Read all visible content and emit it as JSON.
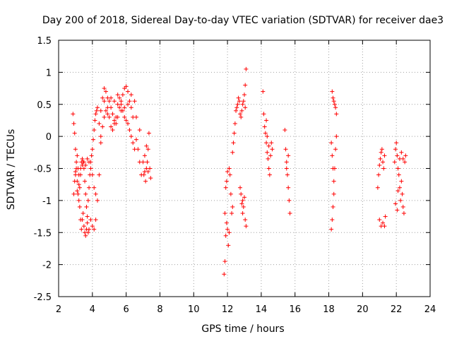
{
  "chart_data": {
    "type": "scatter",
    "title": "Day 200 of 2018, Sidereal Day-to-day VTEC variation (SDTVAR) for receiver dae3",
    "xlabel": "GPS time / hours",
    "ylabel": "SDTVAR / TECUs",
    "xlim": [
      2,
      24
    ],
    "ylim": [
      -2.5,
      1.5
    ],
    "xticks": [
      "2",
      "4",
      "6",
      "8",
      "10",
      "12",
      "14",
      "16",
      "18",
      "20",
      "22",
      "24"
    ],
    "yticks": [
      "1.5",
      "1",
      "0.5",
      "0",
      "-0.5",
      "-1",
      "-1.5",
      "-2",
      "-2.5"
    ],
    "grid": true,
    "marker": "+",
    "color": "#ff0000",
    "series": [
      {
        "name": "SDTVAR",
        "points": [
          [
            2.85,
            0.35
          ],
          [
            2.9,
            0.2
          ],
          [
            2.95,
            0.05
          ],
          [
            3.0,
            -0.2
          ],
          [
            3.05,
            -0.5
          ],
          [
            3.1,
            -0.7
          ],
          [
            3.15,
            -0.9
          ],
          [
            3.2,
            -1.0
          ],
          [
            3.25,
            -0.8
          ],
          [
            3.3,
            -0.6
          ],
          [
            3.35,
            -0.4
          ],
          [
            3.4,
            -0.35
          ],
          [
            3.45,
            -0.4
          ],
          [
            3.5,
            -0.5
          ],
          [
            3.55,
            -0.7
          ],
          [
            3.6,
            -0.9
          ],
          [
            3.65,
            -1.1
          ],
          [
            3.7,
            -1.25
          ],
          [
            3.75,
            -1.0
          ],
          [
            3.8,
            -0.8
          ],
          [
            3.85,
            -0.6
          ],
          [
            3.9,
            -0.4
          ],
          [
            3.95,
            -0.3
          ],
          [
            4.0,
            -0.2
          ],
          [
            4.05,
            -0.05
          ],
          [
            4.1,
            0.1
          ],
          [
            4.15,
            0.25
          ],
          [
            4.2,
            0.35
          ],
          [
            4.25,
            0.4
          ],
          [
            4.3,
            0.45
          ],
          [
            2.9,
            -0.9
          ],
          [
            2.95,
            -0.7
          ],
          [
            3.0,
            -0.55
          ],
          [
            3.05,
            -0.4
          ],
          [
            3.1,
            -0.3
          ],
          [
            3.15,
            -0.5
          ],
          [
            3.2,
            -0.75
          ],
          [
            3.25,
            -1.1
          ],
          [
            3.3,
            -1.3
          ],
          [
            3.35,
            -1.45
          ],
          [
            3.4,
            -1.3
          ],
          [
            3.45,
            -1.2
          ],
          [
            3.5,
            -1.4
          ],
          [
            3.55,
            -1.5
          ],
          [
            3.6,
            -1.55
          ],
          [
            3.65,
            -1.45
          ],
          [
            3.7,
            -1.35
          ],
          [
            3.75,
            -1.5
          ],
          [
            3.8,
            -1.45
          ],
          [
            3.9,
            -1.3
          ],
          [
            4.0,
            -1.4
          ],
          [
            4.1,
            -1.45
          ],
          [
            4.2,
            -1.3
          ],
          [
            3.0,
            -0.6
          ],
          [
            3.1,
            -0.85
          ],
          [
            3.2,
            -0.6
          ],
          [
            3.3,
            -0.5
          ],
          [
            3.4,
            -0.45
          ],
          [
            3.5,
            -0.4
          ],
          [
            3.6,
            -0.45
          ],
          [
            3.7,
            -0.35
          ],
          [
            3.8,
            -0.4
          ],
          [
            3.9,
            -0.5
          ],
          [
            4.0,
            -0.6
          ],
          [
            4.1,
            -0.8
          ],
          [
            4.2,
            -0.9
          ],
          [
            4.3,
            -1.0
          ],
          [
            4.4,
            -0.6
          ],
          [
            4.5,
            -0.1
          ],
          [
            4.4,
            0.2
          ],
          [
            4.5,
            0.4
          ],
          [
            4.6,
            0.6
          ],
          [
            4.7,
            0.75
          ],
          [
            4.8,
            0.7
          ],
          [
            4.9,
            0.6
          ],
          [
            5.0,
            0.55
          ],
          [
            5.1,
            0.45
          ],
          [
            5.2,
            0.35
          ],
          [
            5.3,
            0.25
          ],
          [
            5.4,
            0.2
          ],
          [
            5.5,
            0.3
          ],
          [
            5.6,
            0.45
          ],
          [
            5.7,
            0.55
          ],
          [
            5.8,
            0.65
          ],
          [
            5.9,
            0.75
          ],
          [
            6.0,
            0.78
          ],
          [
            6.1,
            0.7
          ],
          [
            6.2,
            0.55
          ],
          [
            6.3,
            0.45
          ],
          [
            6.4,
            0.3
          ],
          [
            4.5,
            0.0
          ],
          [
            4.6,
            0.15
          ],
          [
            4.7,
            0.3
          ],
          [
            4.8,
            0.4
          ],
          [
            4.9,
            0.35
          ],
          [
            5.0,
            0.3
          ],
          [
            5.1,
            0.15
          ],
          [
            5.2,
            0.1
          ],
          [
            5.3,
            0.2
          ],
          [
            5.4,
            0.3
          ],
          [
            5.5,
            0.5
          ],
          [
            5.6,
            0.6
          ],
          [
            5.7,
            0.5
          ],
          [
            5.8,
            0.4
          ],
          [
            5.9,
            0.3
          ],
          [
            6.0,
            0.25
          ],
          [
            6.1,
            0.2
          ],
          [
            6.2,
            0.1
          ],
          [
            6.3,
            0.0
          ],
          [
            6.4,
            -0.1
          ],
          [
            6.5,
            -0.2
          ],
          [
            6.6,
            -0.05
          ],
          [
            6.7,
            -0.2
          ],
          [
            6.8,
            -0.4
          ],
          [
            6.9,
            -0.6
          ],
          [
            4.7,
            0.55
          ],
          [
            4.9,
            0.45
          ],
          [
            5.1,
            0.6
          ],
          [
            5.3,
            0.55
          ],
          [
            5.5,
            0.65
          ],
          [
            5.7,
            0.4
          ],
          [
            5.9,
            0.45
          ],
          [
            6.1,
            0.5
          ],
          [
            6.3,
            0.65
          ],
          [
            6.5,
            0.55
          ],
          [
            6.6,
            0.3
          ],
          [
            6.8,
            0.1
          ],
          [
            7.0,
            -0.4
          ],
          [
            7.05,
            -0.6
          ],
          [
            7.1,
            -0.55
          ],
          [
            7.15,
            -0.7
          ],
          [
            7.2,
            -0.5
          ],
          [
            7.25,
            -0.4
          ],
          [
            7.3,
            -0.2
          ],
          [
            7.35,
            0.05
          ],
          [
            7.4,
            -0.5
          ],
          [
            7.45,
            -0.65
          ],
          [
            7.1,
            -0.3
          ],
          [
            7.2,
            -0.15
          ],
          [
            7.3,
            -0.55
          ],
          [
            11.8,
            -2.15
          ],
          [
            11.85,
            -1.95
          ],
          [
            11.9,
            -1.55
          ],
          [
            11.95,
            -1.35
          ],
          [
            12.0,
            -1.45
          ],
          [
            12.05,
            -1.7
          ],
          [
            12.1,
            -1.5
          ],
          [
            11.85,
            -1.2
          ],
          [
            11.9,
            -0.8
          ],
          [
            11.95,
            -0.7
          ],
          [
            12.0,
            -0.55
          ],
          [
            12.1,
            -0.5
          ],
          [
            12.15,
            -0.6
          ],
          [
            12.2,
            -0.9
          ],
          [
            12.25,
            -1.2
          ],
          [
            12.3,
            -1.1
          ],
          [
            12.3,
            -0.25
          ],
          [
            12.35,
            -0.1
          ],
          [
            12.4,
            0.05
          ],
          [
            12.45,
            0.2
          ],
          [
            12.5,
            0.4
          ],
          [
            12.55,
            0.45
          ],
          [
            12.6,
            0.5
          ],
          [
            12.65,
            0.6
          ],
          [
            12.7,
            0.55
          ],
          [
            12.75,
            0.35
          ],
          [
            12.8,
            0.3
          ],
          [
            12.85,
            0.4
          ],
          [
            12.9,
            0.5
          ],
          [
            12.95,
            0.55
          ],
          [
            13.0,
            0.65
          ],
          [
            13.05,
            0.8
          ],
          [
            13.1,
            1.05
          ],
          [
            13.05,
            0.45
          ],
          [
            12.75,
            -0.8
          ],
          [
            12.8,
            -0.9
          ],
          [
            12.85,
            -1.05
          ],
          [
            12.9,
            -1.2
          ],
          [
            12.95,
            -1.1
          ],
          [
            13.0,
            -0.95
          ],
          [
            13.05,
            -1.3
          ],
          [
            13.1,
            -1.4
          ],
          [
            12.9,
            -1.0
          ],
          [
            14.1,
            0.7
          ],
          [
            14.15,
            0.35
          ],
          [
            14.2,
            0.15
          ],
          [
            14.25,
            0.05
          ],
          [
            14.3,
            -0.1
          ],
          [
            14.35,
            -0.25
          ],
          [
            14.4,
            -0.35
          ],
          [
            14.45,
            -0.5
          ],
          [
            14.5,
            -0.6
          ],
          [
            14.55,
            -0.3
          ],
          [
            14.6,
            -0.1
          ],
          [
            14.65,
            -0.2
          ],
          [
            14.35,
            0.0
          ],
          [
            14.45,
            -0.15
          ],
          [
            14.3,
            0.25
          ],
          [
            15.4,
            0.1
          ],
          [
            15.45,
            -0.2
          ],
          [
            15.5,
            -0.4
          ],
          [
            15.55,
            -0.6
          ],
          [
            15.6,
            -0.8
          ],
          [
            15.65,
            -1.0
          ],
          [
            15.7,
            -1.2
          ],
          [
            15.5,
            -0.5
          ],
          [
            15.6,
            -0.3
          ],
          [
            18.2,
            0.7
          ],
          [
            18.25,
            0.6
          ],
          [
            18.3,
            0.55
          ],
          [
            18.35,
            0.5
          ],
          [
            18.4,
            0.45
          ],
          [
            18.45,
            0.35
          ],
          [
            18.15,
            -0.1
          ],
          [
            18.2,
            -0.3
          ],
          [
            18.25,
            -0.5
          ],
          [
            18.3,
            -0.7
          ],
          [
            18.35,
            -0.5
          ],
          [
            18.4,
            -0.2
          ],
          [
            18.45,
            0.0
          ],
          [
            18.2,
            -1.3
          ],
          [
            18.15,
            -1.45
          ],
          [
            18.25,
            -1.1
          ],
          [
            18.3,
            -0.9
          ],
          [
            20.9,
            -0.8
          ],
          [
            20.95,
            -0.6
          ],
          [
            21.0,
            -0.45
          ],
          [
            21.05,
            -0.35
          ],
          [
            21.1,
            -0.25
          ],
          [
            21.15,
            -0.2
          ],
          [
            21.2,
            -0.4
          ],
          [
            21.25,
            -0.5
          ],
          [
            21.3,
            -0.3
          ],
          [
            21.0,
            -1.3
          ],
          [
            21.1,
            -1.4
          ],
          [
            21.2,
            -1.35
          ],
          [
            21.3,
            -1.4
          ],
          [
            21.35,
            -1.25
          ],
          [
            21.9,
            -0.4
          ],
          [
            21.95,
            -0.2
          ],
          [
            22.0,
            -0.1
          ],
          [
            22.05,
            -0.3
          ],
          [
            22.1,
            -0.5
          ],
          [
            22.15,
            -0.6
          ],
          [
            22.2,
            -0.8
          ],
          [
            22.25,
            -1.0
          ],
          [
            22.3,
            -0.7
          ],
          [
            22.35,
            -0.9
          ],
          [
            22.4,
            -1.1
          ],
          [
            22.45,
            -1.2
          ],
          [
            22.5,
            -0.4
          ],
          [
            22.55,
            -0.3
          ],
          [
            21.95,
            -1.05
          ],
          [
            22.05,
            -1.15
          ],
          [
            22.1,
            -0.85
          ],
          [
            22.3,
            -0.25
          ],
          [
            22.4,
            -0.35
          ],
          [
            22.2,
            -0.35
          ]
        ]
      }
    ]
  }
}
